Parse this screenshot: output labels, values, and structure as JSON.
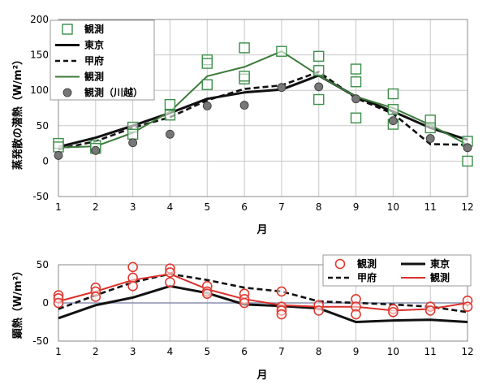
{
  "chart_data": [
    {
      "type": "line",
      "x": [
        1,
        2,
        3,
        4,
        5,
        6,
        7,
        8,
        9,
        10,
        11,
        12
      ],
      "xlabel": "月",
      "ylabel": "蒸発散の潜熱（W/m²）",
      "ylim": [
        -50,
        200
      ],
      "yticks": [
        -50,
        0,
        50,
        100,
        150,
        200
      ],
      "grid": true,
      "legend_position": "top-left",
      "series": [
        {
          "name": "東京",
          "kind": "line",
          "style": "solid-thick",
          "color": "#111111",
          "values": [
            20,
            33,
            50,
            68,
            88,
            97,
            101,
            121,
            91,
            70,
            47,
            30
          ]
        },
        {
          "name": "甲府",
          "kind": "line",
          "style": "dashed",
          "color": "#111111",
          "values": [
            17,
            28,
            47,
            62,
            86,
            102,
            107,
            126,
            89,
            67,
            24,
            23
          ]
        },
        {
          "name": "観測",
          "kind": "line",
          "style": "solid",
          "color": "#3c7a3a",
          "values": [
            19,
            21,
            40,
            70,
            120,
            133,
            155,
            121,
            91,
            75,
            51,
            23
          ]
        },
        {
          "name": "観測",
          "kind": "scatter",
          "marker": "square",
          "color": "#3c8f4a",
          "points": [
            [
              1,
              25
            ],
            [
              1,
              20
            ],
            [
              2,
              22
            ],
            [
              2,
              18
            ],
            [
              3,
              48
            ],
            [
              3,
              38
            ],
            [
              4,
              80
            ],
            [
              4,
              65
            ],
            [
              5,
              143
            ],
            [
              5,
              138
            ],
            [
              5,
              108
            ],
            [
              6,
              160
            ],
            [
              6,
              116
            ],
            [
              6,
              120
            ],
            [
              7,
              155
            ],
            [
              8,
              148
            ],
            [
              8,
              128
            ],
            [
              8,
              87
            ],
            [
              9,
              130
            ],
            [
              9,
              112
            ],
            [
              9,
              61
            ],
            [
              10,
              95
            ],
            [
              10,
              73
            ],
            [
              10,
              52
            ],
            [
              11,
              58
            ],
            [
              11,
              47
            ],
            [
              12,
              28
            ],
            [
              12,
              0
            ]
          ]
        },
        {
          "name": "観測（川越）",
          "kind": "scatter",
          "marker": "circle",
          "color": "#777777",
          "points": [
            [
              1,
              8
            ],
            [
              2,
              15
            ],
            [
              3,
              26
            ],
            [
              4,
              38
            ],
            [
              5,
              78
            ],
            [
              6,
              79
            ],
            [
              7,
              104
            ],
            [
              8,
              105
            ],
            [
              9,
              88
            ],
            [
              10,
              57
            ],
            [
              11,
              32
            ],
            [
              12,
              19
            ]
          ]
        }
      ]
    },
    {
      "type": "line",
      "x": [
        1,
        2,
        3,
        4,
        5,
        6,
        7,
        8,
        9,
        10,
        11,
        12
      ],
      "xlabel": "月",
      "ylabel": "顕熱（W/m²）",
      "ylim": [
        -50,
        50
      ],
      "yticks": [
        -50,
        0,
        50
      ],
      "grid": true,
      "legend_position": "top-right",
      "series": [
        {
          "name": "東京",
          "kind": "line",
          "style": "solid-thick",
          "color": "#111111",
          "values": [
            -20,
            -3,
            7,
            22,
            13,
            -2,
            -4,
            -7,
            -25,
            -23,
            -22,
            -25
          ]
        },
        {
          "name": "甲府",
          "kind": "line",
          "style": "dashed",
          "color": "#111111",
          "values": [
            -8,
            10,
            27,
            38,
            30,
            20,
            15,
            2,
            0,
            -2,
            -5,
            -12
          ]
        },
        {
          "name": "観測",
          "kind": "line",
          "style": "solid",
          "color": "#d9302b",
          "values": [
            2,
            15,
            30,
            38,
            18,
            5,
            -3,
            -5,
            -5,
            -10,
            -8,
            0
          ]
        },
        {
          "name": "観測",
          "kind": "scatter",
          "marker": "circle-open",
          "color": "#e03a30",
          "points": [
            [
              1,
              10
            ],
            [
              1,
              6
            ],
            [
              1,
              0
            ],
            [
              2,
              20
            ],
            [
              2,
              15
            ],
            [
              2,
              8
            ],
            [
              3,
              47
            ],
            [
              3,
              33
            ],
            [
              3,
              22
            ],
            [
              4,
              45
            ],
            [
              4,
              40
            ],
            [
              4,
              27
            ],
            [
              5,
              22
            ],
            [
              5,
              15
            ],
            [
              5,
              12
            ],
            [
              6,
              12
            ],
            [
              6,
              5
            ],
            [
              6,
              0
            ],
            [
              7,
              15
            ],
            [
              7,
              -5
            ],
            [
              7,
              -10
            ],
            [
              7,
              -15
            ],
            [
              8,
              -3
            ],
            [
              8,
              -10
            ],
            [
              9,
              5
            ],
            [
              9,
              -5
            ],
            [
              9,
              -15
            ],
            [
              10,
              -8
            ],
            [
              10,
              -12
            ],
            [
              11,
              -5
            ],
            [
              11,
              -10
            ],
            [
              12,
              3
            ],
            [
              12,
              -5
            ]
          ]
        }
      ]
    }
  ]
}
